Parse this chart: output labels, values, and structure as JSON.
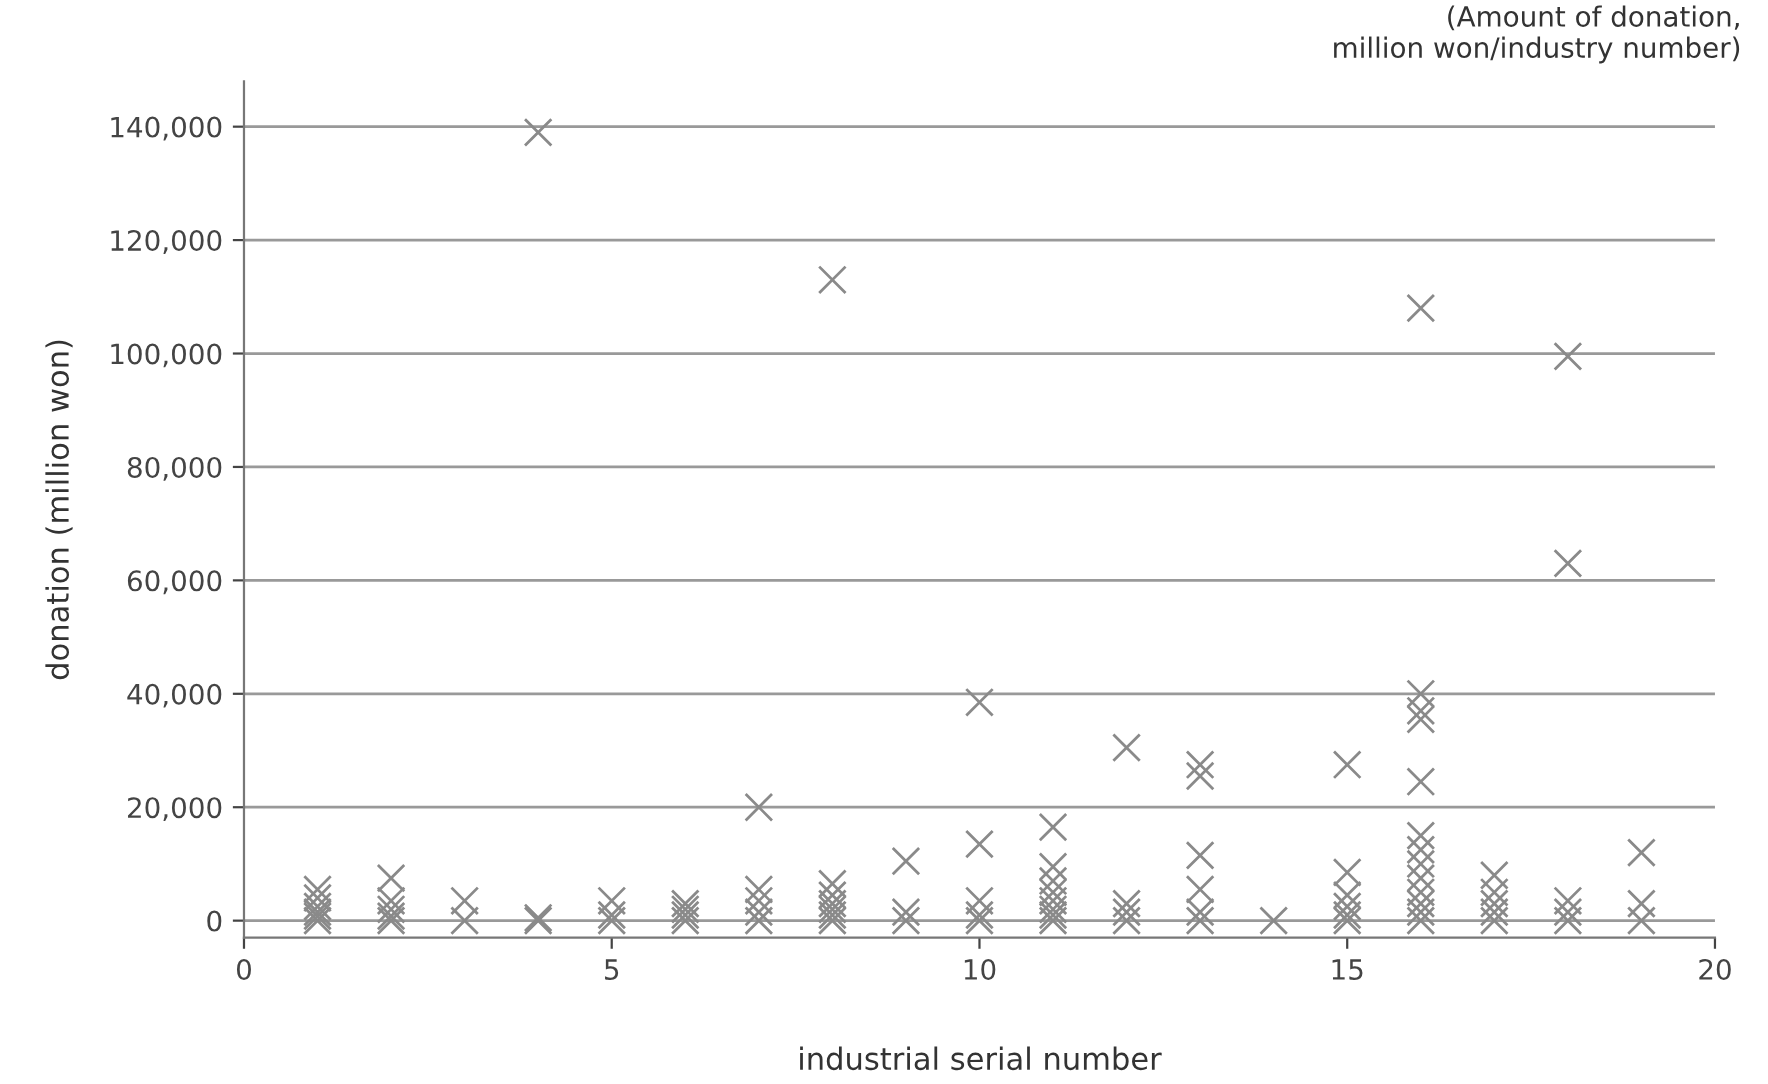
{
  "chart_data": {
    "type": "scatter",
    "xlabel": "industrial serial number",
    "ylabel": "donation (million won)",
    "annotations": [
      "(Amount of donation,\nmillion won/industry number)"
    ],
    "x": [
      1,
      1,
      1,
      1,
      1,
      1,
      2,
      2,
      2,
      2,
      2,
      3,
      3,
      4,
      4,
      4,
      5,
      5,
      5,
      6,
      6,
      6,
      6,
      7,
      7,
      7,
      7,
      7,
      8,
      8,
      8,
      8,
      8,
      8,
      8,
      9,
      9,
      9,
      10,
      10,
      10,
      10,
      10,
      11,
      11,
      11,
      11,
      11,
      11,
      11,
      11,
      12,
      12,
      12,
      12,
      13,
      13,
      13,
      13,
      13,
      13,
      14,
      15,
      15,
      15,
      15,
      15,
      15,
      16,
      16,
      16,
      16,
      16,
      16,
      16,
      16,
      16,
      16,
      16,
      16,
      16,
      17,
      17,
      17,
      17,
      17,
      18,
      18,
      18,
      18,
      18,
      19,
      19,
      19
    ],
    "series": [
      {
        "color": "#8a8a8a",
        "values": [
          0,
          800,
          1500,
          2500,
          4000,
          5500,
          0,
          800,
          2000,
          3500,
          7500,
          0,
          3500,
          0,
          500,
          139000,
          0,
          1000,
          3500,
          0,
          1000,
          2000,
          3000,
          0,
          1500,
          3500,
          5500,
          20000,
          0,
          1000,
          2000,
          3000,
          4500,
          6500,
          113000,
          0,
          1500,
          10500,
          0,
          1000,
          3500,
          13500,
          38500,
          0,
          1000,
          2000,
          3500,
          5000,
          7000,
          9500,
          16500,
          0,
          1500,
          3000,
          30500,
          0,
          1500,
          5500,
          11500,
          25500,
          27500,
          0,
          0,
          1000,
          2500,
          4500,
          8500,
          27500,
          0,
          1500,
          3000,
          5000,
          7500,
          10000,
          12500,
          15000,
          24500,
          35500,
          37000,
          40000,
          108000,
          0,
          1500,
          3000,
          5000,
          8000,
          0,
          1500,
          3500,
          63000,
          99500,
          0,
          3000,
          12000
        ]
      }
    ],
    "marker": "cross",
    "grid": "y",
    "xlim": [
      0,
      20
    ],
    "xticks": [
      0,
      5,
      10,
      15,
      20
    ],
    "ylim": [
      -3000,
      148000
    ],
    "yticks": [
      {
        "value": 0,
        "label": "0"
      },
      {
        "value": 20000,
        "label": "20,000"
      },
      {
        "value": 40000,
        "label": "40,000"
      },
      {
        "value": 60000,
        "label": "60,000"
      },
      {
        "value": 80000,
        "label": "80,000"
      },
      {
        "value": 100000,
        "label": "100,000"
      },
      {
        "value": 120000,
        "label": "120,000"
      },
      {
        "value": 140000,
        "label": "140,000"
      }
    ]
  }
}
